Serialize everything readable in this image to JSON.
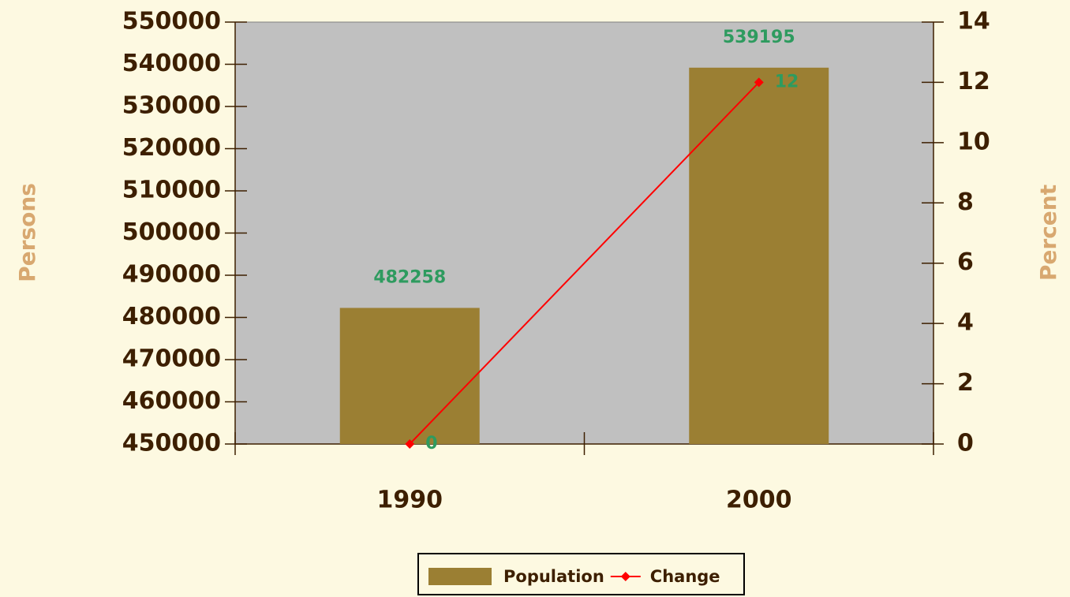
{
  "chart_data": {
    "type": "bar",
    "categories": [
      "1990",
      "2000"
    ],
    "series": [
      {
        "name": "Population",
        "type": "bar",
        "color": "#9b7f33",
        "values": [
          482258,
          539195
        ]
      },
      {
        "name": "Change",
        "type": "line",
        "axis": "y2",
        "color": "#ff0000",
        "values": [
          0,
          12
        ]
      }
    ],
    "ylabel": "Persons",
    "y2label": "Percent",
    "ylim": [
      450000,
      550000
    ],
    "yticks": [
      450000,
      460000,
      470000,
      480000,
      490000,
      500000,
      510000,
      520000,
      530000,
      540000,
      550000
    ],
    "y2lim": [
      0,
      14
    ],
    "y2ticks": [
      0,
      2,
      4,
      6,
      8,
      10,
      12,
      14
    ],
    "legend": "bottom"
  }
}
